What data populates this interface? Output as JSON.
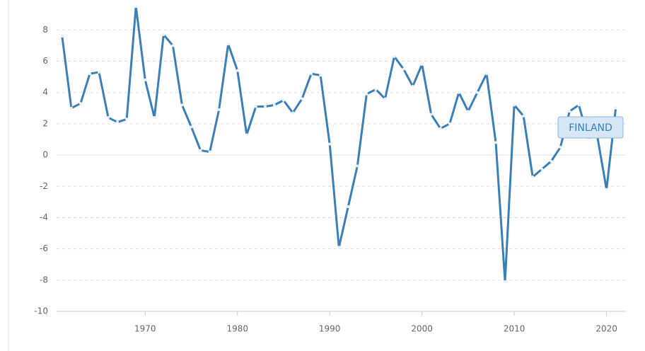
{
  "chart_data": {
    "type": "line",
    "x": [
      1961,
      1962,
      1963,
      1964,
      1965,
      1966,
      1967,
      1968,
      1969,
      1970,
      1971,
      1972,
      1973,
      1974,
      1975,
      1976,
      1977,
      1978,
      1979,
      1980,
      1981,
      1982,
      1983,
      1984,
      1985,
      1986,
      1987,
      1988,
      1989,
      1990,
      1991,
      1992,
      1993,
      1994,
      1995,
      1996,
      1997,
      1998,
      1999,
      2000,
      2001,
      2002,
      2003,
      2004,
      2005,
      2006,
      2007,
      2008,
      2009,
      2010,
      2011,
      2012,
      2013,
      2014,
      2015,
      2016,
      2017,
      2018,
      2019,
      2020,
      2021
    ],
    "series": [
      {
        "name": "FINLAND",
        "color": "#3a7fb8",
        "values": [
          7.6,
          3.0,
          3.3,
          5.2,
          5.3,
          2.4,
          2.1,
          2.3,
          9.5,
          4.8,
          2.4,
          7.7,
          7.0,
          3.2,
          1.8,
          0.3,
          0.2,
          2.9,
          7.1,
          5.4,
          1.3,
          3.1,
          3.1,
          3.2,
          3.5,
          2.7,
          3.6,
          5.2,
          5.1,
          0.7,
          -5.9,
          -3.3,
          -0.7,
          3.9,
          4.2,
          3.6,
          6.3,
          5.5,
          4.4,
          5.8,
          2.6,
          1.7,
          2.0,
          4.0,
          2.8,
          4.0,
          5.2,
          0.8,
          -8.1,
          3.2,
          2.5,
          -1.4,
          -0.9,
          -0.4,
          0.5,
          2.8,
          3.2,
          1.1,
          1.2,
          -2.2,
          3.0
        ]
      }
    ],
    "xlim": [
      1960.4,
      2022.1
    ],
    "xticks": [
      1970,
      1980,
      1990,
      2000,
      2010,
      2020
    ],
    "ylim": [
      -10,
      9.6
    ],
    "yticks": [
      -10,
      -8,
      -6,
      -4,
      -2,
      0,
      2,
      4,
      6,
      8
    ],
    "grid": true
  }
}
